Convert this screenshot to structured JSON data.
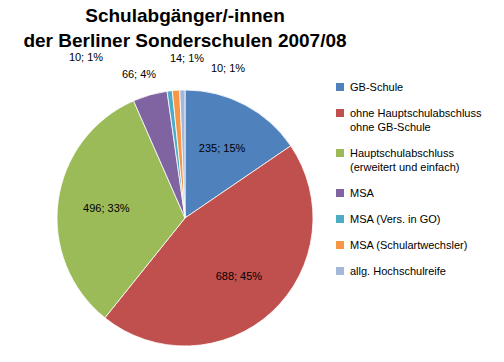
{
  "chart_data": {
    "type": "pie",
    "title": "Schulabgänger/-innen\nder Berliner Sonderschulen 2007/08",
    "categories": [
      "GB-Schule",
      "ohne Hauptschulabschluss\nohne GB-Schule",
      "Hauptschulabschluss\n(erweitert und einfach)",
      "MSA",
      "MSA (Vers. in GO)",
      "MSA (Schulartwechsler)",
      "allg. Hochschulreife"
    ],
    "values": [
      235,
      688,
      496,
      66,
      10,
      14,
      10
    ],
    "value_labels": [
      "235; 15%",
      "688; 45%",
      "496; 33%",
      "66; 4%",
      "10; 1%",
      "14; 1%",
      "10; 1%"
    ],
    "colors": [
      "#4f81bd",
      "#c0504d",
      "#9bbb59",
      "#8064a2",
      "#4bacc6",
      "#f79646",
      "#a6b8d9"
    ],
    "data_labels": true,
    "legend": "right"
  }
}
